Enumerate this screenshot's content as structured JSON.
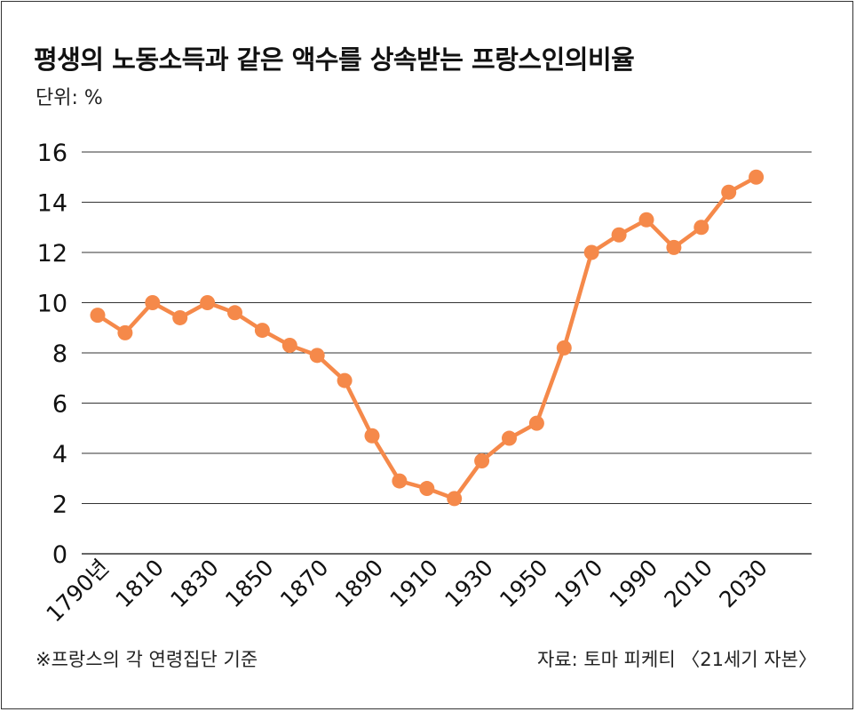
{
  "header": {
    "title": "평생의 노동소득과 같은 액수를 상속받는 프랑스인의비율",
    "unit": "단위: %"
  },
  "footer": {
    "note": "※프랑스의 각 연령집단 기준",
    "source": "자료: 토마 피케티 〈21세기 자본〉"
  },
  "colors": {
    "line": "#f5894a",
    "grid": "#333333",
    "frame": "#333333"
  },
  "chart_data": {
    "type": "line",
    "title": "평생의 노동소득과 같은 액수를 상속받는 프랑스인의비율",
    "xlabel": "",
    "ylabel": "단위: %",
    "ylim": [
      0,
      16
    ],
    "y_ticks": [
      0,
      2,
      4,
      6,
      8,
      10,
      12,
      14,
      16
    ],
    "x_tick_labels": [
      "1790년",
      "1810",
      "1830",
      "1850",
      "1870",
      "1890",
      "1910",
      "1930",
      "1950",
      "1970",
      "1990",
      "2010",
      "2030"
    ],
    "grid": true,
    "legend": "none",
    "series": [
      {
        "x": [
          1790,
          1800,
          1810,
          1820,
          1830,
          1840,
          1850,
          1860,
          1870,
          1880,
          1890,
          1900,
          1910,
          1920,
          1930,
          1940,
          1950,
          1960,
          1970,
          1980,
          1990,
          2000,
          2010,
          2020,
          2030
        ],
        "values": [
          9.5,
          8.8,
          10.0,
          9.4,
          10.0,
          9.6,
          8.9,
          8.3,
          7.9,
          6.9,
          4.7,
          2.9,
          2.6,
          2.2,
          3.7,
          4.6,
          5.2,
          8.2,
          12.0,
          12.7,
          13.3,
          12.2,
          13.0,
          14.4,
          15.0
        ]
      }
    ]
  }
}
